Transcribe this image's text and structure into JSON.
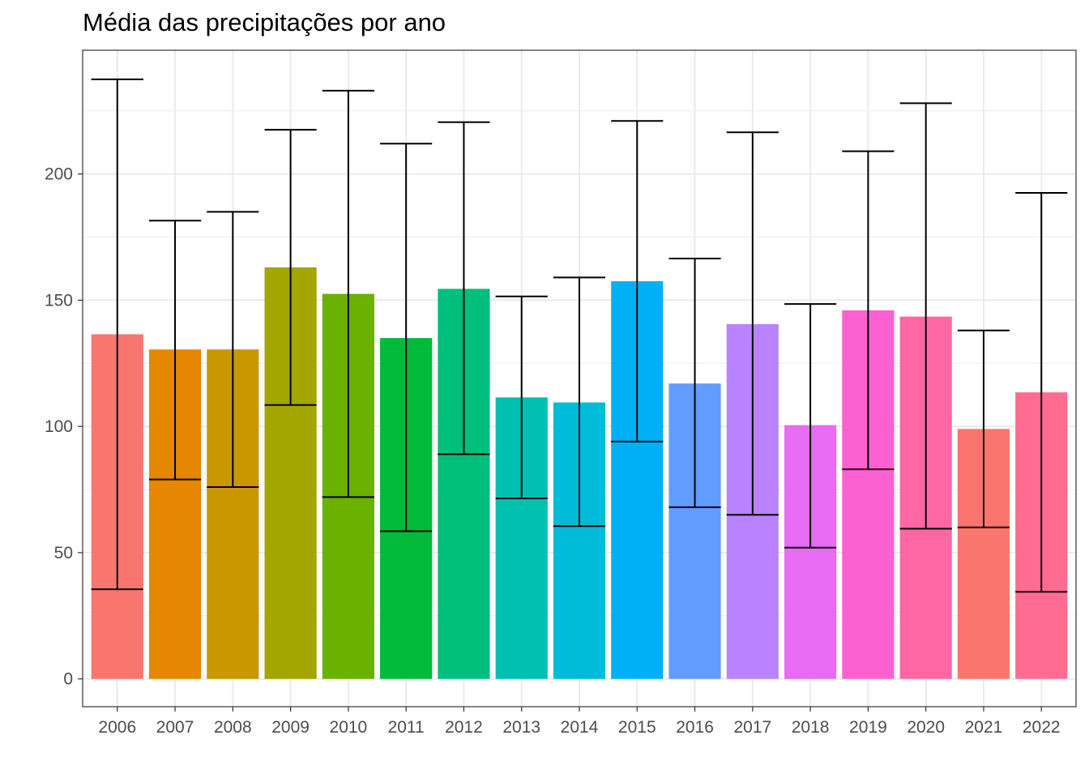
{
  "chart_data": {
    "type": "bar",
    "title": "Média das precipitações por ano",
    "xlabel": "",
    "ylabel": "",
    "categories": [
      "2006",
      "2007",
      "2008",
      "2009",
      "2010",
      "2011",
      "2012",
      "2013",
      "2014",
      "2015",
      "2016",
      "2017",
      "2018",
      "2019",
      "2020",
      "2021",
      "2022"
    ],
    "values": [
      136.5,
      130.5,
      130.5,
      163.0,
      152.5,
      135.0,
      154.5,
      111.5,
      109.5,
      157.5,
      117.0,
      140.5,
      100.5,
      146.0,
      143.5,
      99.0,
      113.5
    ],
    "error_low": [
      35.5,
      79.0,
      76.0,
      108.5,
      72.0,
      58.5,
      89.0,
      71.5,
      60.5,
      94.0,
      68.0,
      65.0,
      52.0,
      83.0,
      59.5,
      60.0,
      34.5
    ],
    "error_high": [
      237.5,
      181.5,
      185.0,
      217.5,
      233.0,
      212.0,
      220.5,
      151.5,
      159.0,
      221.0,
      166.5,
      216.5,
      148.5,
      209.0,
      228.0,
      138.0,
      192.5
    ],
    "colors": [
      "#F8766D",
      "#E58700",
      "#C99800",
      "#A3A500",
      "#6BB100",
      "#00BA38",
      "#00BF7D",
      "#00C0AF",
      "#00BCD8",
      "#00B0F6",
      "#619CFF",
      "#B983FF",
      "#E76BF3",
      "#FD61D1",
      "#FF67A4",
      "#F8766D",
      "#FF6C91"
    ],
    "ylim": [
      -11,
      249
    ],
    "yticks": [
      0,
      50,
      100,
      150,
      200
    ],
    "ytick_labels": [
      "0",
      "50",
      "100",
      "150",
      "200"
    ],
    "grid": true,
    "legend": "none"
  }
}
